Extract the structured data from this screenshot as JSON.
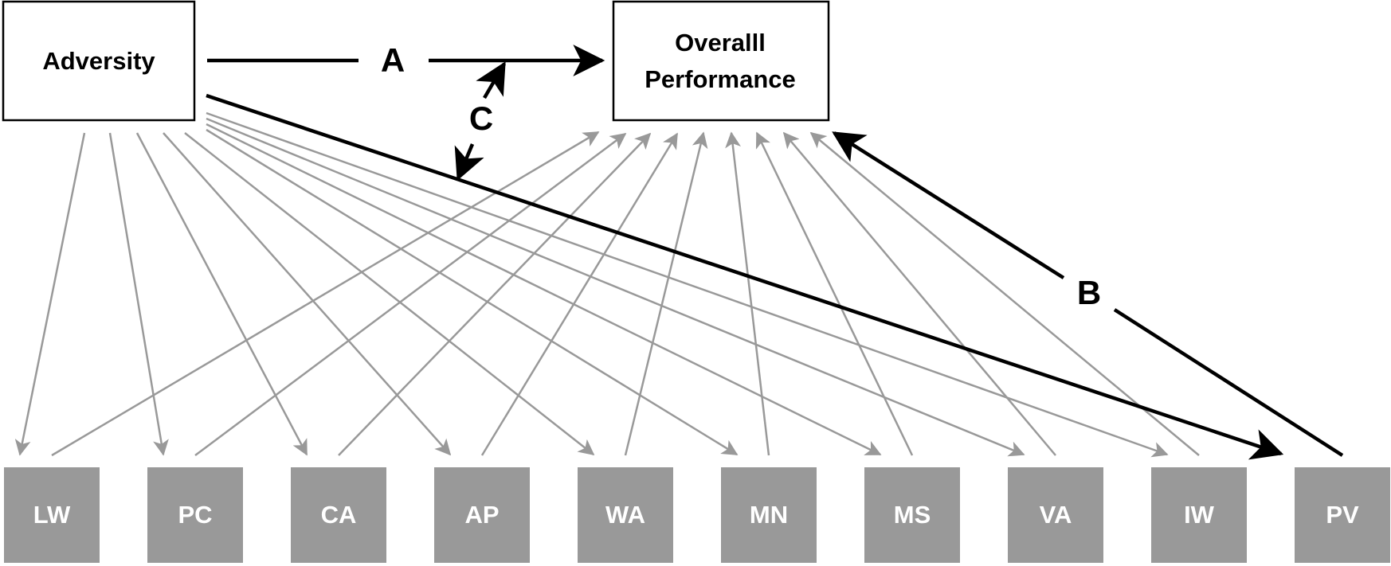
{
  "top_nodes": {
    "adversity": "Adversity",
    "performance_line1": "Overalll",
    "performance_line2": "Performance"
  },
  "path_labels": {
    "a": "A",
    "b": "B",
    "c": "C"
  },
  "mediators": [
    "LW",
    "PC",
    "CA",
    "AP",
    "WA",
    "MN",
    "MS",
    "VA",
    "IW",
    "PV"
  ],
  "colors": {
    "main_path": "#000000",
    "mediator_path": "#999999",
    "mediator_fill": "#999999",
    "mediator_text": "#ffffff",
    "box_stroke": "#000000"
  }
}
